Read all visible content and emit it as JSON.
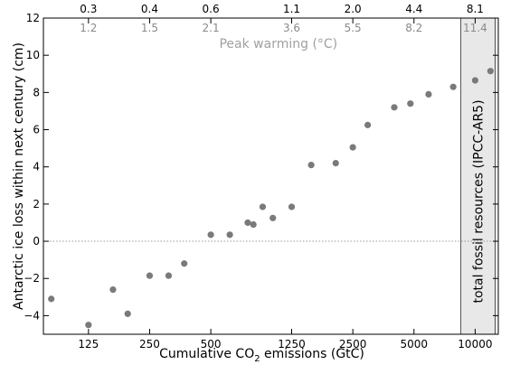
{
  "chart_data": {
    "type": "scatter",
    "x_scale": "log",
    "xlim": [
      75,
      13000
    ],
    "ylim": [
      -5,
      12
    ],
    "xticks": [
      {
        "value": 125,
        "label": "125"
      },
      {
        "value": 250,
        "label": "250"
      },
      {
        "value": 500,
        "label": "500"
      },
      {
        "value": 1250,
        "label": "1250"
      },
      {
        "value": 2500,
        "label": "2500"
      },
      {
        "value": 5000,
        "label": "5000"
      },
      {
        "value": 10000,
        "label": "10000"
      }
    ],
    "yticks": [
      {
        "value": -4,
        "label": "−4"
      },
      {
        "value": -2,
        "label": "−2"
      },
      {
        "value": 0,
        "label": "0"
      },
      {
        "value": 2,
        "label": "2"
      },
      {
        "value": 4,
        "label": "4"
      },
      {
        "value": 6,
        "label": "6"
      },
      {
        "value": 8,
        "label": "8"
      },
      {
        "value": 10,
        "label": "10"
      },
      {
        "value": 12,
        "label": "12"
      }
    ],
    "xlabel_prefix": "Cumulative CO",
    "xlabel_sub": "2",
    "xlabel_suffix": " emissions (GtC)",
    "ylabel": "Antarctic ice loss within next century (cm)",
    "top_axis": {
      "title": "Peak warming (°C)",
      "ticks": [
        {
          "value": 125,
          "upper": "0.3",
          "lower": "1.2"
        },
        {
          "value": 250,
          "upper": "0.4",
          "lower": "1.5"
        },
        {
          "value": 500,
          "upper": "0.6",
          "lower": "2.1"
        },
        {
          "value": 1250,
          "upper": "1.1",
          "lower": "3.6"
        },
        {
          "value": 2500,
          "upper": "2.0",
          "lower": "5.5"
        },
        {
          "value": 5000,
          "upper": "4.4",
          "lower": "8.2"
        },
        {
          "value": 10000,
          "upper": "8.1",
          "lower": "11.4"
        }
      ]
    },
    "shaded_region": {
      "x_range": [
        8500,
        12800
      ],
      "label": "total fossil resources (IPCC-AR5)",
      "color": "#e8e8e8"
    },
    "zero_line": true,
    "marker_color": "#7a7a7a",
    "points": [
      {
        "x": 82,
        "y": -3.1
      },
      {
        "x": 125,
        "y": -4.5
      },
      {
        "x": 165,
        "y": -2.6
      },
      {
        "x": 195,
        "y": -3.9
      },
      {
        "x": 250,
        "y": -1.85
      },
      {
        "x": 310,
        "y": -1.85
      },
      {
        "x": 370,
        "y": -1.2
      },
      {
        "x": 500,
        "y": 0.35
      },
      {
        "x": 620,
        "y": 0.35
      },
      {
        "x": 760,
        "y": 1.0
      },
      {
        "x": 810,
        "y": 0.9
      },
      {
        "x": 900,
        "y": 1.85
      },
      {
        "x": 1010,
        "y": 1.25
      },
      {
        "x": 1250,
        "y": 1.85
      },
      {
        "x": 1560,
        "y": 4.1
      },
      {
        "x": 2060,
        "y": 4.2
      },
      {
        "x": 2500,
        "y": 5.05
      },
      {
        "x": 2960,
        "y": 6.25
      },
      {
        "x": 4000,
        "y": 7.2
      },
      {
        "x": 4800,
        "y": 7.4
      },
      {
        "x": 5900,
        "y": 7.9
      },
      {
        "x": 7800,
        "y": 8.3
      },
      {
        "x": 10000,
        "y": 8.65
      },
      {
        "x": 11900,
        "y": 9.15
      }
    ]
  }
}
